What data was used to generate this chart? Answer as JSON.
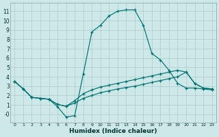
{
  "xlabel": "Humidex (Indice chaleur)",
  "bg_color": "#cce8e8",
  "grid_color": "#aacccc",
  "line_color": "#007070",
  "xlim": [
    -0.5,
    23.5
  ],
  "ylim": [
    -0.9,
    11.9
  ],
  "xticks": [
    0,
    1,
    2,
    3,
    4,
    5,
    6,
    7,
    8,
    9,
    10,
    11,
    12,
    13,
    14,
    15,
    16,
    17,
    18,
    19,
    20,
    21,
    22,
    23
  ],
  "yticks": [
    0,
    1,
    2,
    3,
    4,
    5,
    6,
    7,
    8,
    9,
    10,
    11
  ],
  "ytick_labels": [
    "-0",
    "1",
    "2",
    "3",
    "4",
    "5",
    "6",
    "7",
    "8",
    "9",
    "10",
    "11"
  ],
  "line1_x": [
    0,
    1,
    2,
    3,
    4,
    5,
    6,
    7,
    8,
    9,
    10,
    11,
    12,
    13,
    14,
    15,
    16,
    17,
    18,
    19,
    20,
    21,
    22,
    23
  ],
  "line1_y": [
    3.5,
    2.7,
    1.8,
    1.7,
    1.6,
    0.8,
    -0.3,
    -0.15,
    4.3,
    8.8,
    9.5,
    10.5,
    11.0,
    11.15,
    11.15,
    9.5,
    6.5,
    5.8,
    4.7,
    3.3,
    2.8,
    2.8,
    2.7,
    2.6
  ],
  "line2_x": [
    0,
    1,
    2,
    3,
    4,
    5,
    6,
    7,
    8,
    9,
    10,
    11,
    12,
    13,
    14,
    15,
    16,
    17,
    18,
    19,
    20,
    21,
    22,
    23
  ],
  "line2_y": [
    3.5,
    2.7,
    1.8,
    1.7,
    1.6,
    1.05,
    0.85,
    1.45,
    2.2,
    2.6,
    2.9,
    3.1,
    3.3,
    3.5,
    3.7,
    3.9,
    4.1,
    4.3,
    4.5,
    4.7,
    4.5,
    3.3,
    2.8,
    2.7
  ],
  "line3_x": [
    0,
    1,
    2,
    3,
    4,
    5,
    6,
    7,
    8,
    9,
    10,
    11,
    12,
    13,
    14,
    15,
    16,
    17,
    18,
    19,
    20,
    21,
    22,
    23
  ],
  "line3_y": [
    3.5,
    2.7,
    1.8,
    1.7,
    1.6,
    1.05,
    0.85,
    1.2,
    1.7,
    2.0,
    2.3,
    2.5,
    2.7,
    2.85,
    3.0,
    3.2,
    3.4,
    3.6,
    3.8,
    4.0,
    4.5,
    3.3,
    2.8,
    2.7
  ]
}
